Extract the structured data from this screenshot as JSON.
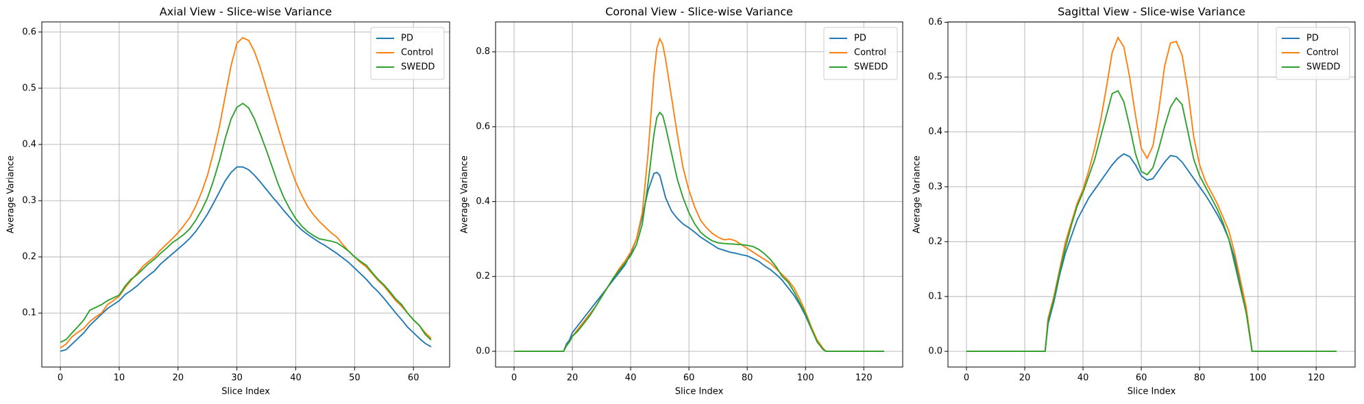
{
  "chart_data": [
    {
      "type": "line",
      "title": "Axial View - Slice-wise Variance",
      "xlabel": "Slice Index",
      "ylabel": "Average Variance",
      "x": [
        0,
        1,
        2,
        3,
        4,
        5,
        6,
        7,
        8,
        9,
        10,
        11,
        12,
        13,
        14,
        15,
        16,
        17,
        18,
        19,
        20,
        21,
        22,
        23,
        24,
        25,
        26,
        27,
        28,
        29,
        30,
        31,
        32,
        33,
        34,
        35,
        36,
        37,
        38,
        39,
        40,
        41,
        42,
        43,
        44,
        45,
        46,
        47,
        48,
        49,
        50,
        51,
        52,
        53,
        54,
        55,
        56,
        57,
        58,
        59,
        60,
        61,
        62,
        63
      ],
      "series": [
        {
          "name": "PD",
          "color": "#1f77b4",
          "values": [
            0.032,
            0.035,
            0.045,
            0.055,
            0.065,
            0.078,
            0.088,
            0.098,
            0.108,
            0.115,
            0.122,
            0.133,
            0.14,
            0.148,
            0.158,
            0.167,
            0.175,
            0.187,
            0.196,
            0.205,
            0.214,
            0.223,
            0.233,
            0.245,
            0.26,
            0.276,
            0.295,
            0.315,
            0.335,
            0.35,
            0.36,
            0.36,
            0.355,
            0.345,
            0.333,
            0.32,
            0.307,
            0.295,
            0.282,
            0.27,
            0.258,
            0.248,
            0.24,
            0.233,
            0.226,
            0.22,
            0.213,
            0.206,
            0.198,
            0.19,
            0.18,
            0.17,
            0.16,
            0.148,
            0.138,
            0.126,
            0.113,
            0.1,
            0.088,
            0.075,
            0.065,
            0.055,
            0.046,
            0.04
          ]
        },
        {
          "name": "Control",
          "color": "#ff7f0e",
          "values": [
            0.038,
            0.045,
            0.058,
            0.066,
            0.073,
            0.085,
            0.093,
            0.1,
            0.115,
            0.122,
            0.13,
            0.145,
            0.158,
            0.17,
            0.183,
            0.192,
            0.2,
            0.212,
            0.222,
            0.232,
            0.243,
            0.256,
            0.27,
            0.29,
            0.315,
            0.345,
            0.385,
            0.43,
            0.485,
            0.54,
            0.58,
            0.59,
            0.585,
            0.565,
            0.535,
            0.5,
            0.465,
            0.43,
            0.395,
            0.362,
            0.333,
            0.31,
            0.29,
            0.275,
            0.263,
            0.253,
            0.243,
            0.235,
            0.222,
            0.21,
            0.2,
            0.19,
            0.182,
            0.17,
            0.158,
            0.148,
            0.135,
            0.122,
            0.112,
            0.1,
            0.088,
            0.078,
            0.065,
            0.055
          ]
        },
        {
          "name": "SWEDD",
          "color": "#2ca02c",
          "values": [
            0.048,
            0.053,
            0.065,
            0.076,
            0.088,
            0.105,
            0.11,
            0.115,
            0.122,
            0.127,
            0.132,
            0.148,
            0.16,
            0.168,
            0.178,
            0.188,
            0.196,
            0.206,
            0.215,
            0.225,
            0.232,
            0.24,
            0.25,
            0.265,
            0.283,
            0.305,
            0.335,
            0.37,
            0.41,
            0.445,
            0.466,
            0.473,
            0.465,
            0.445,
            0.418,
            0.39,
            0.36,
            0.33,
            0.305,
            0.285,
            0.268,
            0.255,
            0.245,
            0.238,
            0.232,
            0.23,
            0.228,
            0.225,
            0.218,
            0.21,
            0.2,
            0.192,
            0.185,
            0.172,
            0.16,
            0.15,
            0.138,
            0.125,
            0.115,
            0.1,
            0.088,
            0.078,
            0.062,
            0.052
          ]
        }
      ],
      "xlim": [
        -3.15,
        66.15
      ],
      "xticks": [
        0,
        10,
        20,
        30,
        40,
        50,
        60
      ],
      "ylim": [
        0.004,
        0.618
      ],
      "yticks": [
        0.1,
        0.2,
        0.3,
        0.4,
        0.5,
        0.6
      ],
      "grid": true,
      "legend": "upper right"
    },
    {
      "type": "line",
      "title": "Coronal View - Slice-wise Variance",
      "xlabel": "Slice Index",
      "ylabel": "Average Variance",
      "x": [
        0,
        17,
        18,
        19,
        20,
        22,
        24,
        26,
        28,
        30,
        32,
        34,
        36,
        38,
        40,
        42,
        44,
        46,
        48,
        49,
        50,
        51,
        52,
        54,
        56,
        58,
        60,
        62,
        64,
        66,
        68,
        70,
        72,
        74,
        76,
        78,
        80,
        82,
        84,
        86,
        88,
        90,
        92,
        94,
        96,
        98,
        100,
        102,
        104,
        106,
        107,
        127
      ],
      "series": [
        {
          "name": "PD",
          "color": "#1f77b4",
          "values": [
            0,
            0,
            0.02,
            0.03,
            0.05,
            0.07,
            0.09,
            0.11,
            0.13,
            0.15,
            0.17,
            0.19,
            0.21,
            0.23,
            0.26,
            0.3,
            0.36,
            0.43,
            0.475,
            0.478,
            0.47,
            0.44,
            0.41,
            0.375,
            0.355,
            0.34,
            0.33,
            0.318,
            0.305,
            0.295,
            0.285,
            0.275,
            0.27,
            0.265,
            0.262,
            0.258,
            0.255,
            0.248,
            0.24,
            0.228,
            0.218,
            0.205,
            0.19,
            0.17,
            0.15,
            0.125,
            0.095,
            0.06,
            0.03,
            0.008,
            0,
            0
          ]
        },
        {
          "name": "Control",
          "color": "#ff7f0e",
          "values": [
            0,
            0,
            0.015,
            0.025,
            0.04,
            0.06,
            0.08,
            0.1,
            0.12,
            0.145,
            0.17,
            0.195,
            0.22,
            0.24,
            0.265,
            0.3,
            0.37,
            0.53,
            0.74,
            0.81,
            0.835,
            0.82,
            0.78,
            0.68,
            0.58,
            0.49,
            0.43,
            0.385,
            0.35,
            0.33,
            0.315,
            0.305,
            0.298,
            0.3,
            0.295,
            0.285,
            0.275,
            0.265,
            0.255,
            0.245,
            0.235,
            0.22,
            0.205,
            0.19,
            0.17,
            0.14,
            0.105,
            0.065,
            0.03,
            0.008,
            0,
            0
          ]
        },
        {
          "name": "SWEDD",
          "color": "#2ca02c",
          "values": [
            0,
            0,
            0.015,
            0.025,
            0.04,
            0.055,
            0.075,
            0.095,
            0.12,
            0.145,
            0.17,
            0.195,
            0.215,
            0.235,
            0.255,
            0.285,
            0.34,
            0.45,
            0.58,
            0.625,
            0.638,
            0.63,
            0.6,
            0.53,
            0.46,
            0.41,
            0.37,
            0.34,
            0.318,
            0.305,
            0.295,
            0.29,
            0.288,
            0.287,
            0.286,
            0.285,
            0.283,
            0.28,
            0.272,
            0.26,
            0.245,
            0.225,
            0.2,
            0.185,
            0.16,
            0.13,
            0.1,
            0.06,
            0.025,
            0.005,
            0,
            0
          ]
        }
      ],
      "xlim": [
        -6.35,
        133.35
      ],
      "xticks": [
        0,
        20,
        40,
        60,
        80,
        100,
        120
      ],
      "ylim": [
        -0.042,
        0.88
      ],
      "yticks": [
        {
          "value": 0,
          "label": "0.0"
        },
        0.2,
        0.4,
        0.6,
        0.8
      ],
      "grid": true,
      "legend": "upper right"
    },
    {
      "type": "line",
      "title": "Sagittal View - Slice-wise Variance",
      "xlabel": "Slice Index",
      "ylabel": "Average Variance",
      "x": [
        0,
        27,
        28,
        30,
        32,
        34,
        36,
        38,
        40,
        42,
        44,
        46,
        48,
        50,
        52,
        54,
        56,
        58,
        60,
        62,
        64,
        66,
        68,
        70,
        72,
        74,
        76,
        78,
        80,
        82,
        84,
        86,
        88,
        90,
        92,
        94,
        96,
        97,
        98,
        127
      ],
      "series": [
        {
          "name": "PD",
          "color": "#1f77b4",
          "values": [
            0,
            0,
            0.05,
            0.09,
            0.14,
            0.18,
            0.21,
            0.24,
            0.26,
            0.28,
            0.295,
            0.31,
            0.325,
            0.34,
            0.352,
            0.36,
            0.355,
            0.34,
            0.32,
            0.312,
            0.315,
            0.33,
            0.345,
            0.357,
            0.355,
            0.345,
            0.33,
            0.315,
            0.3,
            0.285,
            0.268,
            0.25,
            0.23,
            0.205,
            0.17,
            0.12,
            0.07,
            0.04,
            0,
            0
          ]
        },
        {
          "name": "Control",
          "color": "#ff7f0e",
          "values": [
            0,
            0,
            0.06,
            0.1,
            0.15,
            0.2,
            0.235,
            0.27,
            0.295,
            0.33,
            0.37,
            0.42,
            0.48,
            0.545,
            0.572,
            0.555,
            0.5,
            0.43,
            0.37,
            0.352,
            0.375,
            0.44,
            0.52,
            0.562,
            0.565,
            0.54,
            0.475,
            0.39,
            0.34,
            0.31,
            0.29,
            0.27,
            0.245,
            0.22,
            0.18,
            0.13,
            0.08,
            0.04,
            0,
            0
          ]
        },
        {
          "name": "SWEDD",
          "color": "#2ca02c",
          "values": [
            0,
            0,
            0.055,
            0.095,
            0.145,
            0.19,
            0.23,
            0.265,
            0.29,
            0.32,
            0.35,
            0.39,
            0.43,
            0.47,
            0.475,
            0.455,
            0.41,
            0.36,
            0.328,
            0.322,
            0.335,
            0.37,
            0.41,
            0.445,
            0.462,
            0.45,
            0.4,
            0.35,
            0.32,
            0.3,
            0.28,
            0.26,
            0.235,
            0.205,
            0.16,
            0.115,
            0.07,
            0.035,
            0,
            0
          ]
        }
      ],
      "xlim": [
        -6.35,
        133.35
      ],
      "xticks": [
        0,
        20,
        40,
        60,
        80,
        100,
        120
      ],
      "ylim": [
        -0.0286,
        0.6006
      ],
      "yticks": [
        {
          "value": 0,
          "label": "0.0"
        },
        0.1,
        0.2,
        0.3,
        0.4,
        0.5,
        0.6
      ],
      "grid": true,
      "legend": "upper right"
    }
  ]
}
